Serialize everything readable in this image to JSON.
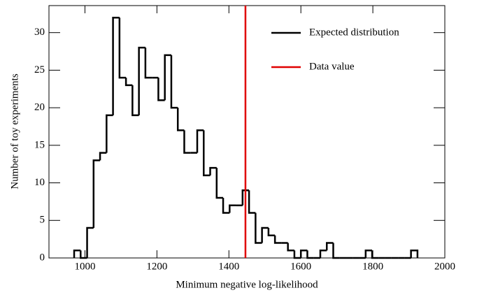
{
  "chart_data": {
    "type": "histogram",
    "xlabel": "Minimum negative log-likelihood",
    "ylabel": "Number of toy experiments",
    "name": "Expected distribution",
    "color": "#000000",
    "bins": [
      970,
      988,
      1006,
      1024,
      1042,
      1060,
      1078,
      1096,
      1114,
      1132,
      1150,
      1168,
      1186,
      1204,
      1222,
      1240,
      1258,
      1276,
      1294,
      1312,
      1330,
      1348,
      1366,
      1384,
      1402,
      1420,
      1438,
      1456,
      1474,
      1492,
      1510,
      1528,
      1546,
      1564,
      1582,
      1600,
      1618,
      1636,
      1654,
      1672,
      1690,
      1708,
      1726,
      1744,
      1762,
      1780,
      1798,
      1816,
      1834,
      1852,
      1870,
      1888,
      1906,
      1924
    ],
    "counts": [
      1,
      0,
      4,
      13,
      14,
      19,
      32,
      24,
      23,
      19,
      28,
      24,
      24,
      21,
      27,
      20,
      17,
      14,
      14,
      17,
      11,
      12,
      8,
      6,
      7,
      7,
      9,
      6,
      2,
      4,
      3,
      2,
      2,
      1,
      0,
      1,
      0,
      0,
      1,
      2,
      0,
      0,
      0,
      0,
      0,
      1,
      0,
      0,
      0,
      0,
      0,
      0,
      1
    ],
    "lines": [
      {
        "name": "Data value",
        "x": 1446,
        "color": "#e00000"
      }
    ],
    "xlim": [
      900,
      2000
    ],
    "xticks": [
      1000,
      1200,
      1400,
      1600,
      1800,
      2000
    ],
    "ylim": [
      0,
      33.6
    ],
    "yticks": [
      0,
      5,
      10,
      15,
      20,
      25,
      30
    ],
    "legend": "upper right"
  }
}
